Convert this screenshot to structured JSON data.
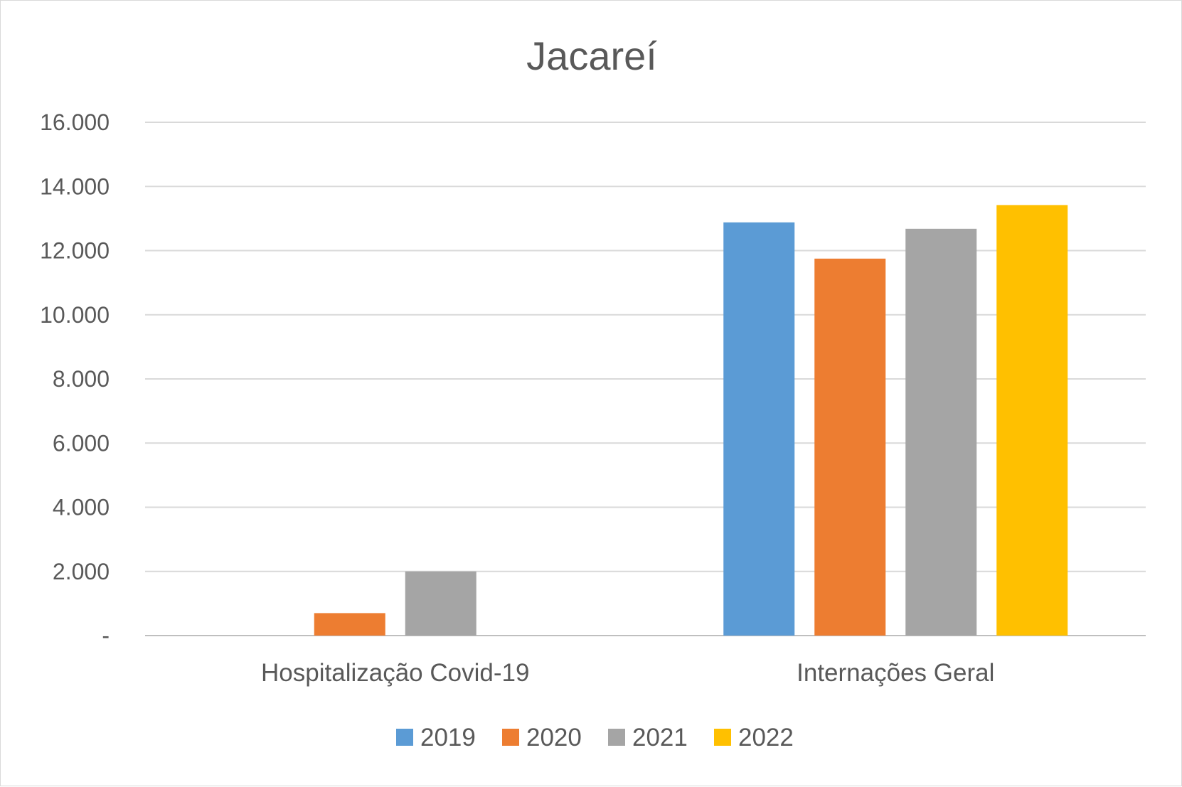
{
  "chart_data": {
    "type": "bar",
    "title": "Jacareí",
    "xlabel": "",
    "ylabel": "",
    "categories": [
      "Hospitalização Covid-19",
      "Internações Geral"
    ],
    "series": [
      {
        "name": "2019",
        "color": "#5b9bd5",
        "values": [
          0,
          12880
        ]
      },
      {
        "name": "2020",
        "color": "#ed7d31",
        "values": [
          700,
          11750
        ]
      },
      {
        "name": "2021",
        "color": "#a5a5a5",
        "values": [
          2000,
          12680
        ]
      },
      {
        "name": "2022",
        "color": "#ffc000",
        "values": [
          0,
          13420
        ]
      }
    ],
    "ylim": [
      0,
      16000
    ],
    "yticks": [
      0,
      2000,
      4000,
      6000,
      8000,
      10000,
      12000,
      14000,
      16000
    ],
    "ytick_labels": [
      "-",
      "2.000",
      "4.000",
      "6.000",
      "8.000",
      "10.000",
      "12.000",
      "14.000",
      "16.000"
    ],
    "grid": true,
    "legend_position": "bottom"
  }
}
